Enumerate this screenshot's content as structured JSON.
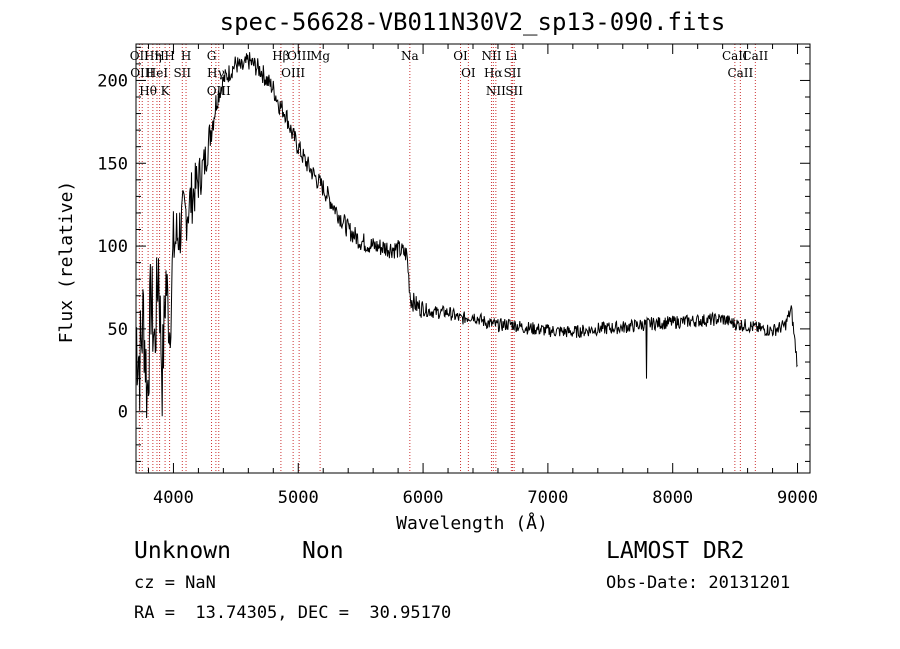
{
  "title": "spec-56628-VB011N30V2_sp13-090.fits",
  "footer": {
    "class": "Unknown",
    "subclass": "Non",
    "survey": "LAMOST DR2",
    "cz": "cz = NaN",
    "obs_date": "Obs-Date: 20131201",
    "coords": "RA =  13.74305, DEC =  30.95170"
  },
  "chart_data": {
    "type": "line",
    "title": "spec-56628-VB011N30V2_sp13-090.fits",
    "xlabel": "Wavelength (Å)",
    "ylabel": "Flux (relative)",
    "xlim": [
      3700,
      9100
    ],
    "ylim": [
      -37,
      222
    ],
    "xticks": [
      4000,
      5000,
      6000,
      7000,
      8000,
      9000
    ],
    "yticks": [
      0,
      50,
      100,
      150,
      200
    ],
    "grid": false,
    "series": [
      {
        "x": [
          3700,
          3730,
          3760,
          3790,
          3820,
          3850,
          3880,
          3910,
          3940,
          3970,
          4000,
          4050,
          4100,
          4150,
          4200,
          4250,
          4300,
          4350,
          4400,
          4450,
          4500,
          4550,
          4600,
          4650,
          4700,
          4750,
          4800,
          4850,
          4900,
          4950,
          5000,
          5050,
          5100,
          5150,
          5200,
          5300,
          5400,
          5500,
          5600,
          5700,
          5800,
          5870,
          5900,
          5950,
          6000,
          6100,
          6200,
          6300,
          6400,
          6500,
          6600,
          6700,
          6800,
          6900,
          7000,
          7200,
          7400,
          7600,
          7700,
          7800,
          8000,
          8200,
          8400,
          8500,
          8600,
          8700,
          8800,
          8900,
          8950,
          9000
        ],
        "y": [
          50,
          30,
          60,
          10,
          70,
          40,
          90,
          20,
          80,
          50,
          100,
          110,
          120,
          130,
          140,
          150,
          170,
          190,
          200,
          205,
          210,
          207,
          212,
          209,
          206,
          200,
          195,
          185,
          180,
          168,
          160,
          152,
          146,
          140,
          135,
          122,
          110,
          103,
          100,
          99,
          98,
          95,
          68,
          64,
          62,
          60,
          60,
          56,
          58,
          54,
          52,
          53,
          51,
          50,
          49,
          48,
          50,
          51,
          52,
          53,
          54,
          55,
          56,
          53,
          52,
          50,
          49,
          52,
          62,
          28
        ],
        "noise_after_6000": 4,
        "noise_scale_blue": 30,
        "spike": {
          "x": 7790,
          "y": 20
        }
      }
    ],
    "lines": [
      {
        "x": 3727,
        "labels": [
          "OII"
        ]
      },
      {
        "x": 3750,
        "labels": [
          "OIII"
        ]
      },
      {
        "x": 3797,
        "labels": [
          "Hθ"
        ]
      },
      {
        "x": 3835,
        "labels": [
          "Hη"
        ]
      },
      {
        "x": 3868,
        "labels": [
          "HeI"
        ]
      },
      {
        "x": 3889,
        "labels": [
          "H"
        ]
      },
      {
        "x": 3933,
        "labels": [
          "K"
        ]
      },
      {
        "x": 3969,
        "labels": [
          "H"
        ]
      },
      {
        "x": 4071,
        "labels": [
          "SII"
        ]
      },
      {
        "x": 4101,
        "labels": [
          "H"
        ]
      },
      {
        "x": 4305,
        "labels": [
          "G"
        ]
      },
      {
        "x": 4340,
        "labels": [
          "Hγ"
        ]
      },
      {
        "x": 4363,
        "labels": [
          "OIII"
        ]
      },
      {
        "x": 4861,
        "labels": [
          "Hβ"
        ]
      },
      {
        "x": 4959,
        "labels": [
          "OIII"
        ]
      },
      {
        "x": 5007,
        "labels": [
          "OIII"
        ]
      },
      {
        "x": 5175,
        "labels": [
          "Mg"
        ]
      },
      {
        "x": 5894,
        "labels": [
          "Na"
        ]
      },
      {
        "x": 6300,
        "labels": [
          "OI"
        ]
      },
      {
        "x": 6363,
        "labels": [
          "OI"
        ]
      },
      {
        "x": 6548,
        "labels": [
          "NII"
        ]
      },
      {
        "x": 6563,
        "labels": [
          "Hα"
        ]
      },
      {
        "x": 6583,
        "labels": [
          "NII"
        ]
      },
      {
        "x": 6707,
        "labels": [
          "Li"
        ]
      },
      {
        "x": 6716,
        "labels": [
          "SII"
        ]
      },
      {
        "x": 6730,
        "labels": [
          "SII"
        ]
      },
      {
        "x": 8498,
        "labels": [
          "CaII"
        ]
      },
      {
        "x": 8542,
        "labels": [
          "CaII"
        ]
      },
      {
        "x": 8662,
        "labels": [
          "CaII"
        ]
      }
    ],
    "line_colors": {
      "spectrum": "#000000",
      "markers": "#cc3333"
    }
  }
}
